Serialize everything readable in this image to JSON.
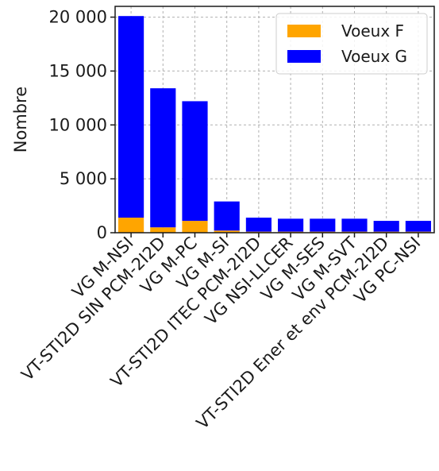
{
  "chart_data": {
    "type": "bar",
    "stacked": true,
    "categories": [
      "VG M-NSI",
      "VT-STI2D SIN PCM-2I2D",
      "VG M-PC",
      "VG M-SI",
      "VT-STI2D ITEC PCM-2I2D",
      "VG NSI-LLCER",
      "VG M-SES",
      "VG M-SVT",
      "VT-STI2D Ener et env PCM-2I2D",
      "VG PC-NSI"
    ],
    "series": [
      {
        "name": "Voeux F",
        "color": "#ffa500",
        "values": [
          1400,
          500,
          1100,
          200,
          100,
          100,
          100,
          100,
          100,
          100
        ]
      },
      {
        "name": "Voeux G",
        "color": "#0000ff",
        "values": [
          18700,
          12900,
          11100,
          2700,
          1300,
          1200,
          1200,
          1200,
          1000,
          1000
        ]
      }
    ],
    "ylabel": "Nombre",
    "xlabel": "",
    "ylim": [
      0,
      21000
    ],
    "yticks": [
      0,
      5000,
      10000,
      15000,
      20000
    ],
    "ytick_labels": [
      "0",
      "5 000",
      "10 000",
      "15 000",
      "20 000"
    ],
    "grid": true,
    "legend_position": "top-right"
  }
}
